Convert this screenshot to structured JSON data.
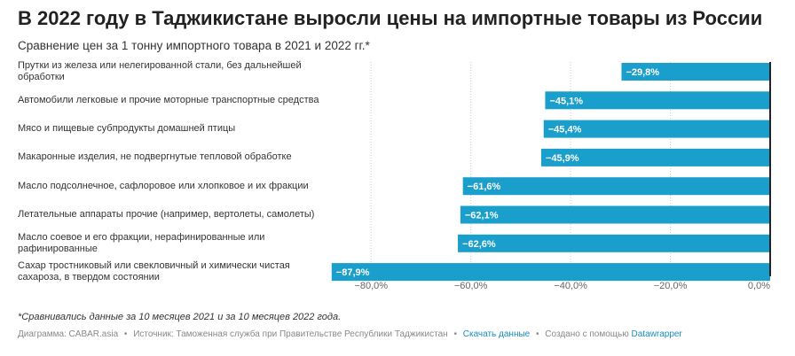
{
  "header": {
    "title": "В 2022 году в Таджикистане выросли цены на импортные товары из России",
    "subtitle": "Сравнение цен за 1 тонну импортного товара в 2021 и 2022 гг.*"
  },
  "chart_data": {
    "type": "bar",
    "orientation": "horizontal",
    "categories": [
      "Прутки из железа или нелегированной стали, без дальнейшей обработки",
      "Автомобили легковые и прочие моторные транспортные средства",
      "Мясо и пищевые субпродукты домашней птицы",
      "Макаронные изделия, не подвергнутые тепловой обработке",
      "Масло подсолнечное, сафлоровое или хлопковое и их фракции",
      "Летательные аппараты прочие (например, вертолеты, самолеты)",
      "Масло соевое и его фракции, нерафинированные или рафинированные",
      "Сахар тростниковый или свекловичный и химически чистая сахароза, в твердом состоянии"
    ],
    "values": [
      -29.8,
      -45.1,
      -45.4,
      -45.9,
      -61.6,
      -62.1,
      -62.6,
      -87.9
    ],
    "value_labels": [
      "−29,8%",
      "−45,1%",
      "−45,4%",
      "−45,9%",
      "−61,6%",
      "−62,1%",
      "−62,6%",
      "−87,9%"
    ],
    "xlim": [
      -90,
      0
    ],
    "xticks": [
      -80,
      -60,
      -40,
      -20,
      0
    ],
    "xtick_labels": [
      "−80,0%",
      "−60,0%",
      "−40,0%",
      "−20,0%",
      "0,0%"
    ],
    "grid": true,
    "bar_color": "#1a9ecb",
    "label_color": "#ffffff"
  },
  "footer": {
    "note": "*Сравнивались данные за 10 месяцев 2021 и за 10 месяцев 2022 года.",
    "credit": "Диаграмма: CABAR.asia",
    "source": "Источник: Таможенная служба при Правительстве Республики Таджикистан",
    "download_link": "Скачать данные",
    "made_with": "Создано с помощью",
    "tool_link": "Datawrapper",
    "separator": "•"
  }
}
